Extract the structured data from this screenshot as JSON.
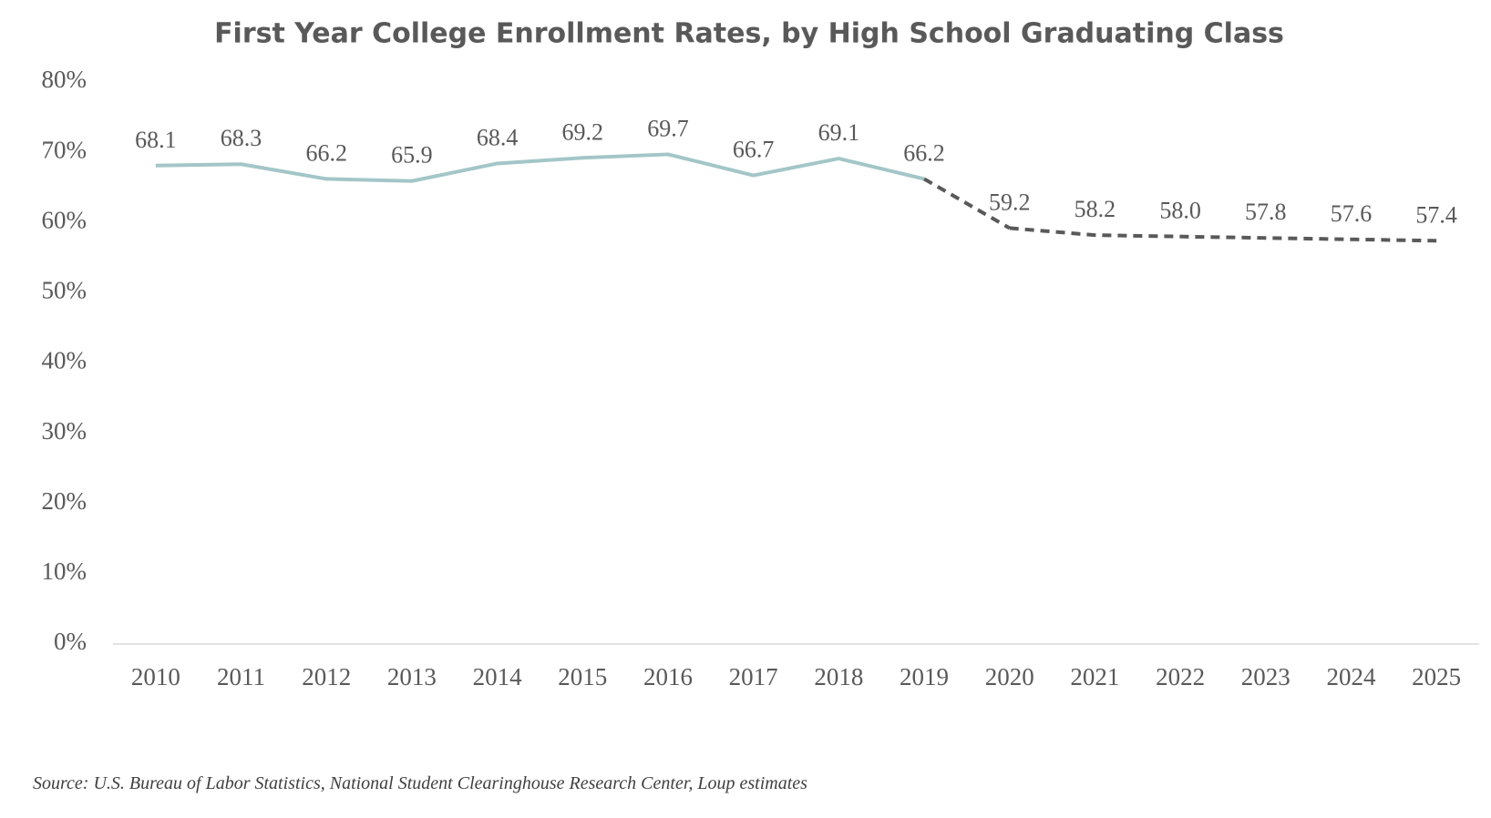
{
  "chart_data": {
    "type": "line",
    "title": "First Year College Enrollment Rates, by High School Graduating Class",
    "source": "Source: U.S. Bureau of Labor Statistics, National Student Clearinghouse Research Center, Loup estimates",
    "categories": [
      "2010",
      "2011",
      "2012",
      "2013",
      "2014",
      "2015",
      "2016",
      "2017",
      "2018",
      "2019",
      "2020",
      "2021",
      "2022",
      "2023",
      "2024",
      "2025"
    ],
    "series": [
      {
        "color": "#a3c6c8",
        "dash": false,
        "values": [
          68.1,
          68.3,
          66.2,
          65.9,
          68.4,
          69.2,
          69.7,
          66.7,
          69.1,
          66.2,
          null,
          null,
          null,
          null,
          null,
          null
        ],
        "value_labels": [
          "68.1",
          "68.3",
          "66.2",
          "65.9",
          "68.4",
          "69.2",
          "69.7",
          "66.7",
          "69.1",
          "66.2",
          null,
          null,
          null,
          null,
          null,
          null
        ]
      },
      {
        "color": "#595959",
        "dash": true,
        "values": [
          null,
          null,
          null,
          null,
          null,
          null,
          null,
          null,
          null,
          null,
          59.2,
          58.2,
          58.0,
          57.8,
          57.6,
          57.4
        ],
        "value_labels": [
          null,
          null,
          null,
          null,
          null,
          null,
          null,
          null,
          null,
          null,
          "59.2",
          "58.2",
          "58.0",
          "57.8",
          "57.6",
          "57.4"
        ]
      }
    ],
    "ylim": [
      0,
      80
    ],
    "yticks": [
      {
        "value": 0,
        "label": "0%"
      },
      {
        "value": 10,
        "label": "10%"
      },
      {
        "value": 20,
        "label": "20%"
      },
      {
        "value": 30,
        "label": "30%"
      },
      {
        "value": 40,
        "label": "40%"
      },
      {
        "value": 50,
        "label": "50%"
      },
      {
        "value": 60,
        "label": "60%"
      },
      {
        "value": 70,
        "label": "70%"
      },
      {
        "value": 80,
        "label": "80%"
      }
    ],
    "grid": false
  }
}
